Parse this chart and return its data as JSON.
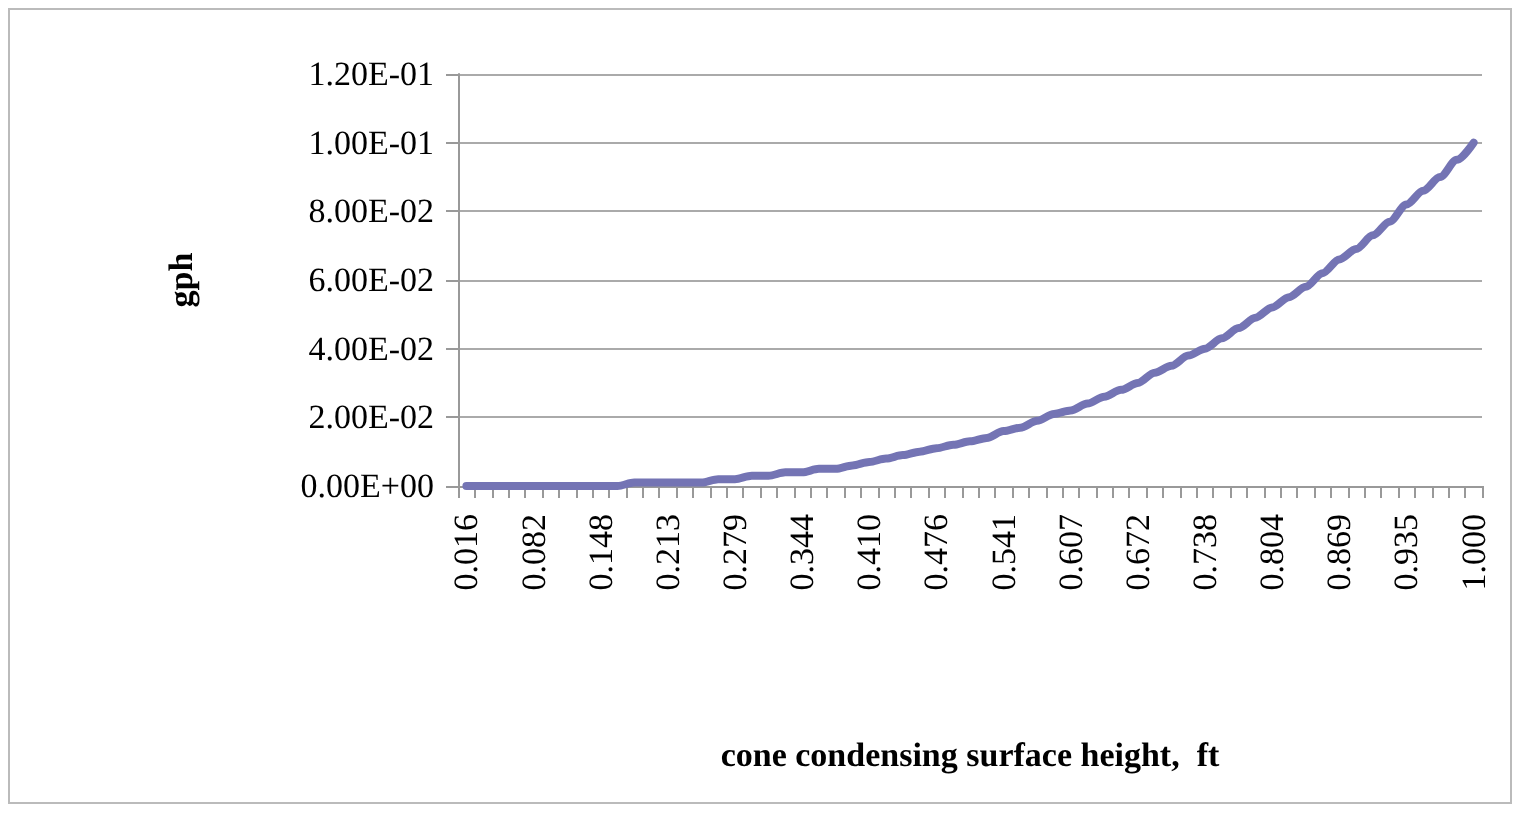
{
  "chart_data": {
    "type": "line",
    "xlabel": "cone condensing surface height,  ft",
    "ylabel": "gph",
    "categories": [
      "0.016",
      null,
      null,
      null,
      "0.082",
      null,
      null,
      null,
      "0.148",
      null,
      null,
      null,
      "0.213",
      null,
      null,
      null,
      "0.279",
      null,
      null,
      null,
      "0.344",
      null,
      null,
      null,
      "0.410",
      null,
      null,
      null,
      "0.476",
      null,
      null,
      null,
      "0.541",
      null,
      null,
      null,
      "0.607",
      null,
      null,
      null,
      "0.672",
      null,
      null,
      null,
      "0.738",
      null,
      null,
      null,
      "0.804",
      null,
      null,
      null,
      "0.869",
      null,
      null,
      null,
      "0.935",
      null,
      null,
      null,
      "1.000"
    ],
    "series": [
      {
        "color": "#7474b4",
        "values": [
          0,
          0,
          0,
          0,
          0,
          0,
          0,
          0,
          0,
          0,
          0.001,
          0.001,
          0.001,
          0.001,
          0.001,
          0.002,
          0.002,
          0.003,
          0.003,
          0.004,
          0.004,
          0.005,
          0.005,
          0.006,
          0.007,
          0.008,
          0.009,
          0.01,
          0.011,
          0.012,
          0.013,
          0.014,
          0.016,
          0.017,
          0.019,
          0.021,
          0.022,
          0.024,
          0.026,
          0.028,
          0.03,
          0.033,
          0.035,
          0.038,
          0.04,
          0.043,
          0.046,
          0.049,
          0.052,
          0.055,
          0.058,
          0.062,
          0.066,
          0.069,
          0.073,
          0.077,
          0.082,
          0.086,
          0.09,
          0.095,
          0.1
        ]
      }
    ],
    "ylim": [
      0,
      0.12
    ],
    "yticks": [
      {
        "value": 0,
        "label": "0.00E+00"
      },
      {
        "value": 0.02,
        "label": "2.00E-02"
      },
      {
        "value": 0.04,
        "label": "4.00E-02"
      },
      {
        "value": 0.06,
        "label": "6.00E-02"
      },
      {
        "value": 0.08,
        "label": "8.00E-02"
      },
      {
        "value": 0.1,
        "label": "1.00E-01"
      },
      {
        "value": 0.12,
        "label": "1.20E-01"
      }
    ],
    "grid": "y",
    "marker": "none",
    "line_style": "solid"
  }
}
